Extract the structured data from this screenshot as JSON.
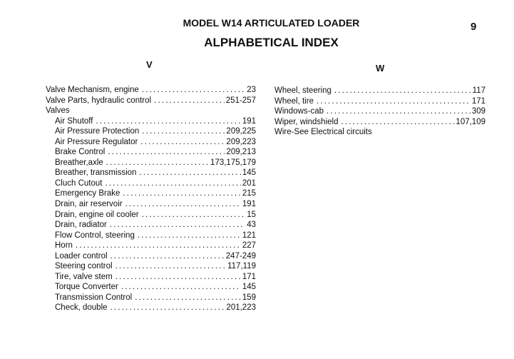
{
  "header": {
    "title": "MODEL W14 ARTICULATED LOADER",
    "page_number": "9",
    "subtitle": "ALPHABETICAL INDEX"
  },
  "sections": [
    {
      "letter": "V",
      "entries": [
        {
          "label": "Valve Mechanism, engine",
          "pages": "23",
          "indent": false
        },
        {
          "label": "Valve Parts, hydraulic control",
          "pages": "251-257",
          "indent": false
        },
        {
          "label": "Valves",
          "pages": "",
          "indent": false
        },
        {
          "label": "Air Shutoff",
          "pages": "191",
          "indent": true
        },
        {
          "label": "Air Pressure Protection",
          "pages": "209,225",
          "indent": true
        },
        {
          "label": "Air Pressure Regulator",
          "pages": "209,223",
          "indent": true
        },
        {
          "label": "Brake Control",
          "pages": "209,213",
          "indent": true
        },
        {
          "label": "Breather,axle",
          "pages": "173,175,179",
          "indent": true
        },
        {
          "label": "Breather, transmission",
          "pages": "145",
          "indent": true
        },
        {
          "label": "Cluch Cutout",
          "pages": "201",
          "indent": true
        },
        {
          "label": "Emergency Brake",
          "pages": "215",
          "indent": true
        },
        {
          "label": "Drain, air reservoir",
          "pages": "191",
          "indent": true
        },
        {
          "label": "Drain, engine oil cooler",
          "pages": "15",
          "indent": true
        },
        {
          "label": "Drain, radiator",
          "pages": "43",
          "indent": true
        },
        {
          "label": "Flow Control, steering",
          "pages": "121",
          "indent": true
        },
        {
          "label": "Horn",
          "pages": "227",
          "indent": true
        },
        {
          "label": "Loader control",
          "pages": "247-249",
          "indent": true
        },
        {
          "label": "Steering control",
          "pages": "117,119",
          "indent": true
        },
        {
          "label": "Tire, valve stem",
          "pages": "171",
          "indent": true
        },
        {
          "label": "Torque Converter",
          "pages": "145",
          "indent": true
        },
        {
          "label": "Transmission Control",
          "pages": "159",
          "indent": true
        },
        {
          "label": "Check, double",
          "pages": "201,223",
          "indent": true
        }
      ]
    },
    {
      "letter": "W",
      "entries": [
        {
          "label": "Wheel, steering",
          "pages": "117",
          "indent": false
        },
        {
          "label": "Wheel, tire",
          "pages": "171",
          "indent": false
        },
        {
          "label": "Windows-cab",
          "pages": "309",
          "indent": false
        },
        {
          "label": "Wiper, windshield",
          "pages": "107,109",
          "indent": false
        },
        {
          "label": "Wire-See Electrical circuits",
          "pages": "",
          "indent": false
        }
      ]
    }
  ]
}
